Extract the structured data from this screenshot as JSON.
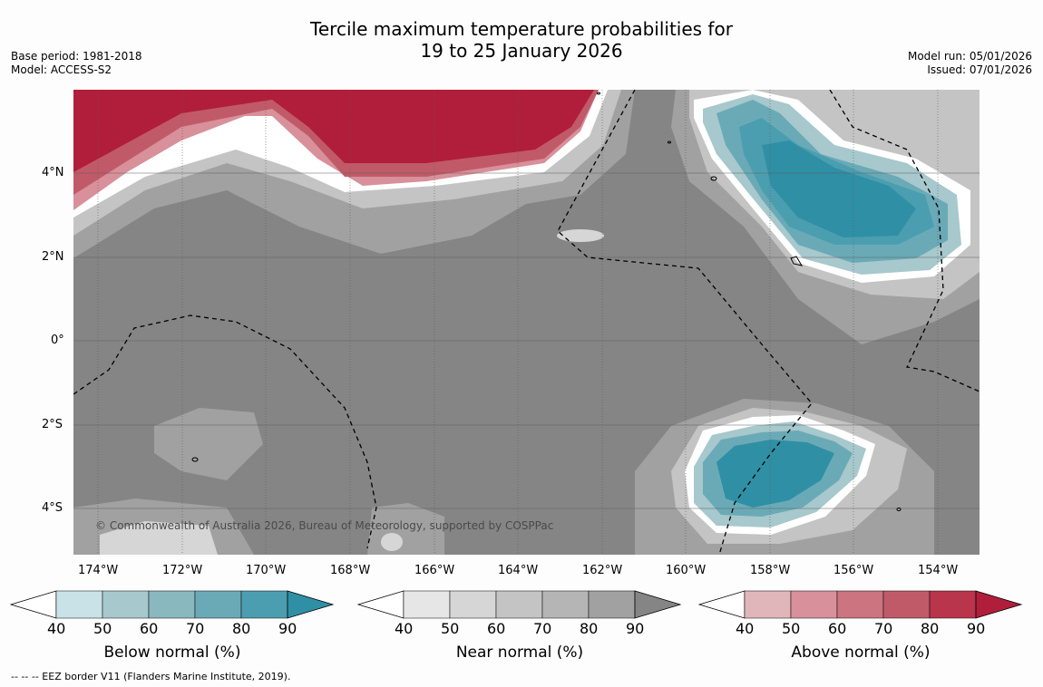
{
  "title": {
    "line1": "Tercile maximum temperature probabilities for",
    "line2": "19 to 25 January 2026"
  },
  "meta": {
    "base_period": "Base period: 1981-2018",
    "model": "Model: ACCESS-S2",
    "model_run": "Model run: 05/01/2026",
    "issued": "Issued: 07/01/2026"
  },
  "map": {
    "copyright": "© Commonwealth of Australia 2026, Bureau of Meteorology, supported by COSPPac",
    "x_ticks": [
      "174°W",
      "172°W",
      "170°W",
      "168°W",
      "166°W",
      "164°W",
      "162°W",
      "160°W",
      "158°W",
      "156°W",
      "154°W"
    ],
    "y_ticks": [
      "4°N",
      "2°N",
      "0°",
      "2°S",
      "4°S"
    ],
    "colors": {
      "near_90": "#858585",
      "near_80": "#a1a1a1",
      "near_70": "#b5b5b5",
      "near_60": "#c4c4c4",
      "near_50": "#d6d6d6",
      "near_40": "#e6e6e6"
    }
  },
  "colorbars": [
    {
      "name": "below",
      "title": "Below normal (%)",
      "labels": [
        "40",
        "50",
        "60",
        "70",
        "80",
        "90"
      ],
      "colors": [
        "#c9e2e8",
        "#a7c8cc",
        "#8ab8bf",
        "#6aaab7",
        "#4b9eaf",
        "#2f8fa5"
      ]
    },
    {
      "name": "near",
      "title": "Near normal (%)",
      "labels": [
        "40",
        "50",
        "60",
        "70",
        "80",
        "90"
      ],
      "colors": [
        "#e6e6e6",
        "#d6d6d6",
        "#c4c4c4",
        "#b5b5b5",
        "#a1a1a1",
        "#858585"
      ]
    },
    {
      "name": "above",
      "title": "Above normal (%)",
      "labels": [
        "40",
        "50",
        "60",
        "70",
        "80",
        "90"
      ],
      "colors": [
        "#e1b6bb",
        "#d8909a",
        "#cc7480",
        "#c15a68",
        "#b8354b",
        "#b01e3b"
      ]
    }
  ],
  "footnote": "--  --  -- EEZ border V11 (Flanders Marine Institute, 2019)."
}
